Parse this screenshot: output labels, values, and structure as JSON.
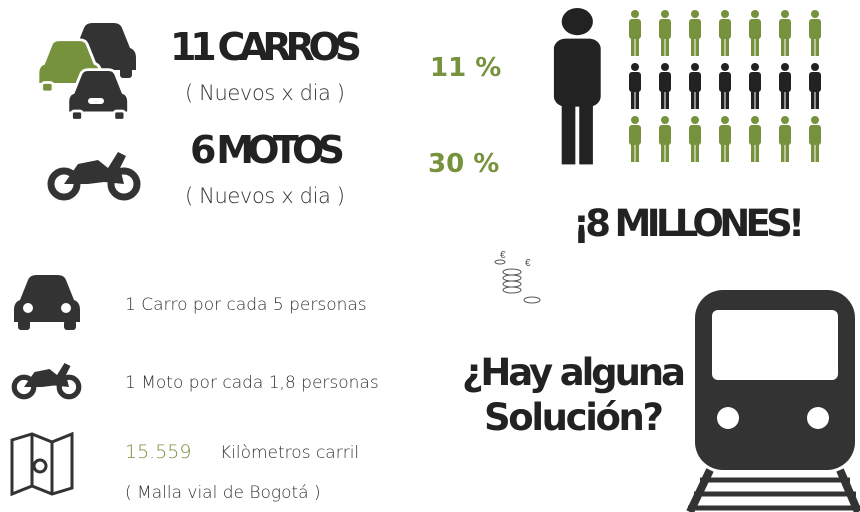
{
  "cars": {
    "title": "11 CARROS",
    "subtitle": "( Nuevos x dia )",
    "percent": "11 %"
  },
  "motos": {
    "title": "6 MOTOS",
    "subtitle": "( Nuevos x dia )",
    "percent": "30 %"
  },
  "population": "¡8 MILLONES!",
  "facts": {
    "car_ratio": "1 Carro por cada 5 personas",
    "moto_ratio": "1 Moto por cada 1,8 personas",
    "km_value": "15.559",
    "km_label": "Kilòmetros carril",
    "km_note": "( Malla vial de Bogotá )"
  },
  "question": {
    "line1": "¿Hay alguna",
    "line2": "Solución?"
  }
}
